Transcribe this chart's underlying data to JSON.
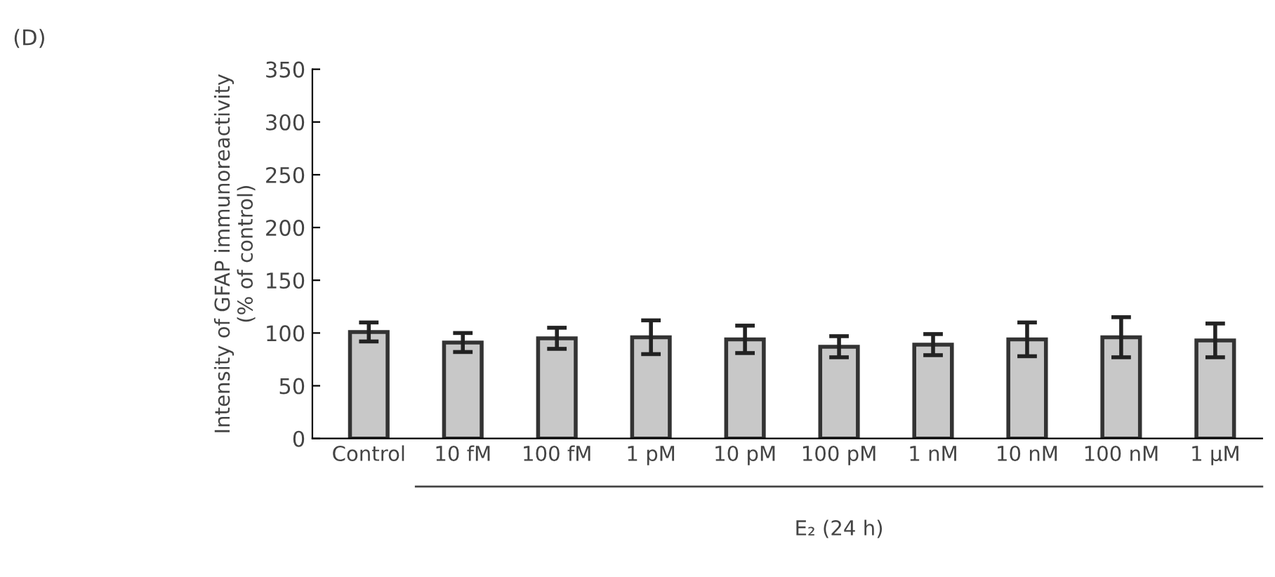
{
  "chart_data": {
    "type": "bar",
    "title": "(D)",
    "ylabel": "Intensity of GFAP immunoreactivity\n(% of control)",
    "categories": [
      "Control",
      "10 fM",
      "100 fM",
      "1 pM",
      "10 pM",
      "100 pM",
      "1 nM",
      "10 nM",
      "100 nM",
      "1 μM"
    ],
    "values": [
      101,
      91,
      95,
      96,
      94,
      87,
      89,
      94,
      96,
      93
    ],
    "errors": [
      9,
      9,
      10,
      16,
      13,
      10,
      10,
      16,
      19,
      16
    ],
    "color": "#c8c8c8",
    "ylim": [
      0,
      350
    ],
    "yticks": [
      0,
      50,
      100,
      150,
      200,
      250,
      300,
      350
    ],
    "grid": false,
    "legend": false,
    "annotations": [
      "E₂ (24 h)"
    ]
  }
}
